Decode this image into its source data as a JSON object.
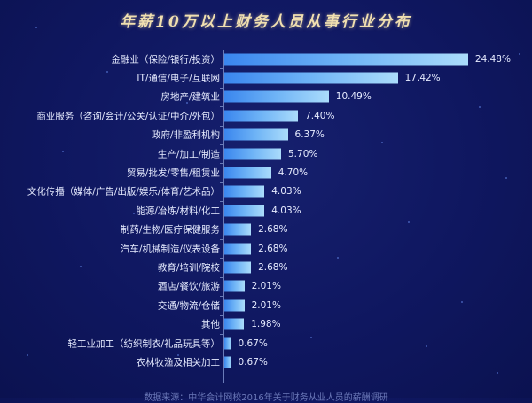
{
  "title": "年薪10万以上财务人员从事行业分布",
  "footer": "数据来源：中华会计网校2016年关于财务从业人员的薪酬调研",
  "colors": {
    "background": "#0f1760",
    "bar_start": "#3a86ee",
    "bar_end": "#abdcfb",
    "title": "#f0dfb0",
    "text": "#e6ebff"
  },
  "chart_data": {
    "type": "bar",
    "orientation": "horizontal",
    "title": "年薪10万以上财务人员从事行业分布",
    "xlabel": "",
    "ylabel": "",
    "categories": [
      "金融业（保险/银行/投资）",
      "IT/通信/电子/互联网",
      "房地产/建筑业",
      "商业服务（咨询/会计/公关/认证/中介/外包）",
      "政府/非盈利机构",
      "生产/加工/制造",
      "贸易/批发/零售/租赁业",
      "文化传播（媒体/广告/出版/娱乐/体育/艺术品）",
      "能源/冶炼/材料/化工",
      "制药/生物/医疗保健服务",
      "汽车/机械制造/仪表设备",
      "教育/培训/院校",
      "酒店/餐饮/旅游",
      "交通/物流/仓储",
      "其他",
      "轻工业加工（纺织制衣/礼品玩具等）",
      "农林牧渔及相关加工"
    ],
    "values": [
      24.48,
      17.42,
      10.49,
      7.4,
      6.37,
      5.7,
      4.7,
      4.03,
      4.03,
      2.68,
      2.68,
      2.68,
      2.01,
      2.01,
      1.98,
      0.67,
      0.67
    ],
    "value_labels": [
      "24.48%",
      "17.42%",
      "10.49%",
      "7.40%",
      "6.37%",
      "5.70%",
      "4.70%",
      "4.03%",
      "4.03%",
      "2.68%",
      "2.68%",
      "2.68%",
      "2.01%",
      "2.01%",
      "1.98%",
      "0.67%",
      "0.67%"
    ],
    "unit": "%",
    "xlim": [
      0,
      25
    ],
    "grid": false,
    "legend": "none"
  }
}
